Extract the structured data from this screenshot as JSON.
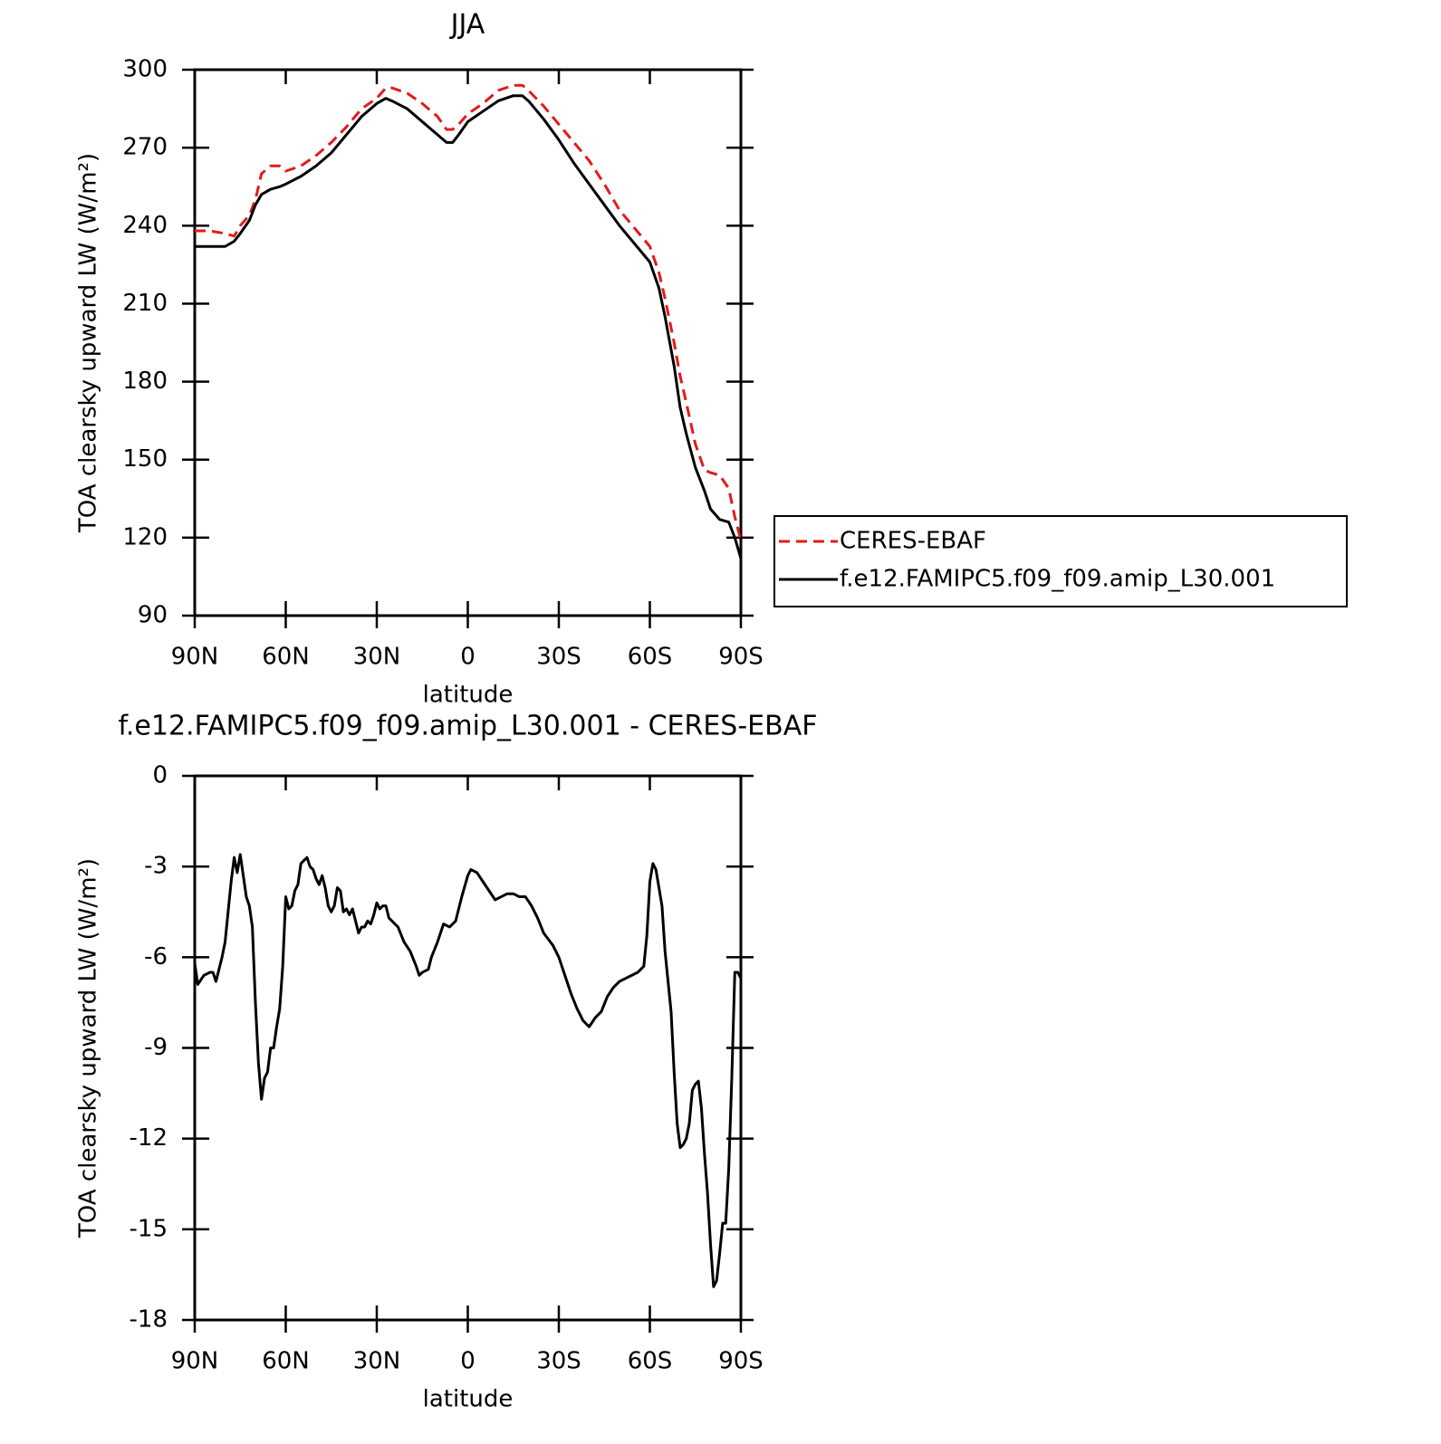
{
  "chart_data": [
    {
      "type": "line",
      "title": "JJA",
      "xlabel": "latitude",
      "ylabel": "TOA clearsky upward LW (W/m²)",
      "xlim": [
        90,
        -90
      ],
      "ylim": [
        90,
        300
      ],
      "xticks": [
        {
          "value": 90,
          "label": "90N"
        },
        {
          "value": 60,
          "label": "60N"
        },
        {
          "value": 30,
          "label": "30N"
        },
        0,
        {
          "value": -30,
          "label": "30S"
        },
        {
          "value": -60,
          "label": "60S"
        },
        {
          "value": -90,
          "label": "90S"
        }
      ],
      "yticks": [
        90,
        120,
        150,
        180,
        210,
        240,
        270,
        300
      ],
      "legend": "right",
      "x": [
        90,
        85,
        80,
        77,
        75,
        72,
        70,
        68,
        65,
        62,
        60,
        55,
        50,
        45,
        40,
        35,
        30,
        27,
        25,
        20,
        15,
        10,
        7,
        5,
        3,
        0,
        -5,
        -10,
        -15,
        -18,
        -20,
        -25,
        -30,
        -35,
        -40,
        -45,
        -50,
        -55,
        -60,
        -63,
        -65,
        -68,
        -70,
        -72,
        -75,
        -78,
        -80,
        -83,
        -86,
        -88,
        -90
      ],
      "series": [
        {
          "name": "CERES-EBAF",
          "color": "#e41a1c",
          "linestyle": "dashed",
          "values": [
            238,
            238,
            237,
            236,
            240,
            244,
            250,
            260,
            263,
            263,
            261,
            263,
            267,
            272,
            278,
            285,
            289,
            293,
            293,
            291,
            287,
            282,
            277,
            277,
            279,
            283,
            287,
            292,
            294,
            294,
            292,
            286,
            279,
            272,
            265,
            256,
            246,
            239,
            232,
            222,
            212,
            195,
            182,
            172,
            156,
            146,
            145,
            144,
            139,
            128,
            119
          ]
        },
        {
          "name": "f.e12.FAMIPC5.f09_f09.amip_L30.001",
          "color": "#000000",
          "linestyle": "solid",
          "values": [
            232,
            232,
            232,
            234,
            237,
            242,
            248,
            252,
            254,
            255,
            256,
            259,
            263,
            268,
            275,
            282,
            287,
            289,
            288,
            285,
            280,
            275,
            272,
            272,
            275,
            280,
            284,
            288,
            290,
            290,
            288,
            281,
            273,
            264,
            256,
            248,
            240,
            233,
            226,
            216,
            205,
            186,
            170,
            160,
            147,
            138,
            131,
            127,
            126,
            120,
            112
          ]
        }
      ]
    },
    {
      "type": "line",
      "title": "f.e12.FAMIPC5.f09_f09.amip_L30.001 - CERES-EBAF",
      "xlabel": "latitude",
      "ylabel": "TOA clearsky upward LW (W/m²)",
      "xlim": [
        90,
        -90
      ],
      "ylim": [
        -18,
        0
      ],
      "xticks": [
        {
          "value": 90,
          "label": "90N"
        },
        {
          "value": 60,
          "label": "60N"
        },
        {
          "value": 30,
          "label": "30N"
        },
        0,
        {
          "value": -30,
          "label": "30S"
        },
        {
          "value": -60,
          "label": "60S"
        },
        {
          "value": -90,
          "label": "90S"
        }
      ],
      "yticks": [
        -18,
        -15,
        -12,
        -9,
        -6,
        -3,
        0
      ],
      "x": [
        90,
        89,
        87,
        85,
        84,
        83,
        81,
        80,
        79,
        78,
        77,
        76,
        75,
        74,
        73,
        72,
        71,
        70,
        69,
        68,
        67,
        66,
        65,
        64,
        63,
        62,
        61,
        60,
        59,
        58,
        57,
        56,
        55,
        54,
        53,
        52,
        51,
        50,
        49,
        48,
        47,
        46,
        45,
        44,
        43,
        42,
        41,
        40,
        39,
        38,
        37,
        36,
        35,
        34,
        33,
        32,
        31,
        30,
        29,
        28,
        27,
        26,
        25,
        23,
        21,
        19,
        17,
        16,
        15,
        13,
        12,
        10,
        8,
        6,
        4,
        2,
        0,
        -1,
        -3,
        -5,
        -7,
        -9,
        -11,
        -13,
        -15,
        -17,
        -19,
        -21,
        -23,
        -25,
        -28,
        -30,
        -32,
        -34,
        -36,
        -38,
        -40,
        -42,
        -44,
        -46,
        -48,
        -50,
        -52,
        -54,
        -56,
        -58,
        -59,
        -60,
        -61,
        -62,
        -63,
        -64,
        -65,
        -67,
        -68,
        -69,
        -70,
        -71,
        -72,
        -73,
        -74,
        -75,
        -76,
        -77,
        -78,
        -79,
        -80,
        -81,
        -82,
        -83,
        -84,
        -85,
        -86,
        -87,
        -88,
        -89,
        -90
      ],
      "series": [
        {
          "color": "#000000",
          "linestyle": "solid",
          "values": [
            -6.2,
            -6.9,
            -6.6,
            -6.5,
            -6.5,
            -6.8,
            -6.0,
            -5.5,
            -4.5,
            -3.5,
            -2.7,
            -3.2,
            -2.6,
            -3.3,
            -4.0,
            -4.3,
            -5.0,
            -7.5,
            -9.5,
            -10.7,
            -10.0,
            -9.8,
            -9.0,
            -9.0,
            -8.3,
            -7.7,
            -6.3,
            -4.0,
            -4.4,
            -4.3,
            -3.8,
            -3.6,
            -2.9,
            -2.8,
            -2.7,
            -3.0,
            -3.1,
            -3.4,
            -3.6,
            -3.3,
            -3.7,
            -4.3,
            -4.5,
            -4.3,
            -3.7,
            -3.8,
            -4.5,
            -4.4,
            -4.6,
            -4.4,
            -4.8,
            -5.2,
            -5.0,
            -5.0,
            -4.8,
            -4.9,
            -4.6,
            -4.2,
            -4.4,
            -4.3,
            -4.3,
            -4.7,
            -4.8,
            -5.0,
            -5.5,
            -5.8,
            -6.3,
            -6.6,
            -6.5,
            -6.4,
            -6.0,
            -5.5,
            -4.9,
            -5.0,
            -4.8,
            -4.0,
            -3.3,
            -3.1,
            -3.2,
            -3.5,
            -3.8,
            -4.1,
            -4.0,
            -3.9,
            -3.9,
            -4.0,
            -4.0,
            -4.3,
            -4.7,
            -5.2,
            -5.6,
            -6.0,
            -6.6,
            -7.2,
            -7.7,
            -8.1,
            -8.3,
            -8.0,
            -7.8,
            -7.3,
            -7.0,
            -6.8,
            -6.7,
            -6.6,
            -6.5,
            -6.3,
            -5.3,
            -3.5,
            -2.9,
            -3.1,
            -3.7,
            -4.3,
            -5.8,
            -7.8,
            -9.8,
            -11.5,
            -12.3,
            -12.2,
            -12.0,
            -11.5,
            -10.4,
            -10.2,
            -10.1,
            -11.0,
            -12.5,
            -13.8,
            -15.5,
            -16.9,
            -16.7,
            -15.8,
            -14.8,
            -14.8,
            -13.0,
            -10.0,
            -6.5,
            -6.5,
            -6.7
          ]
        }
      ]
    }
  ]
}
